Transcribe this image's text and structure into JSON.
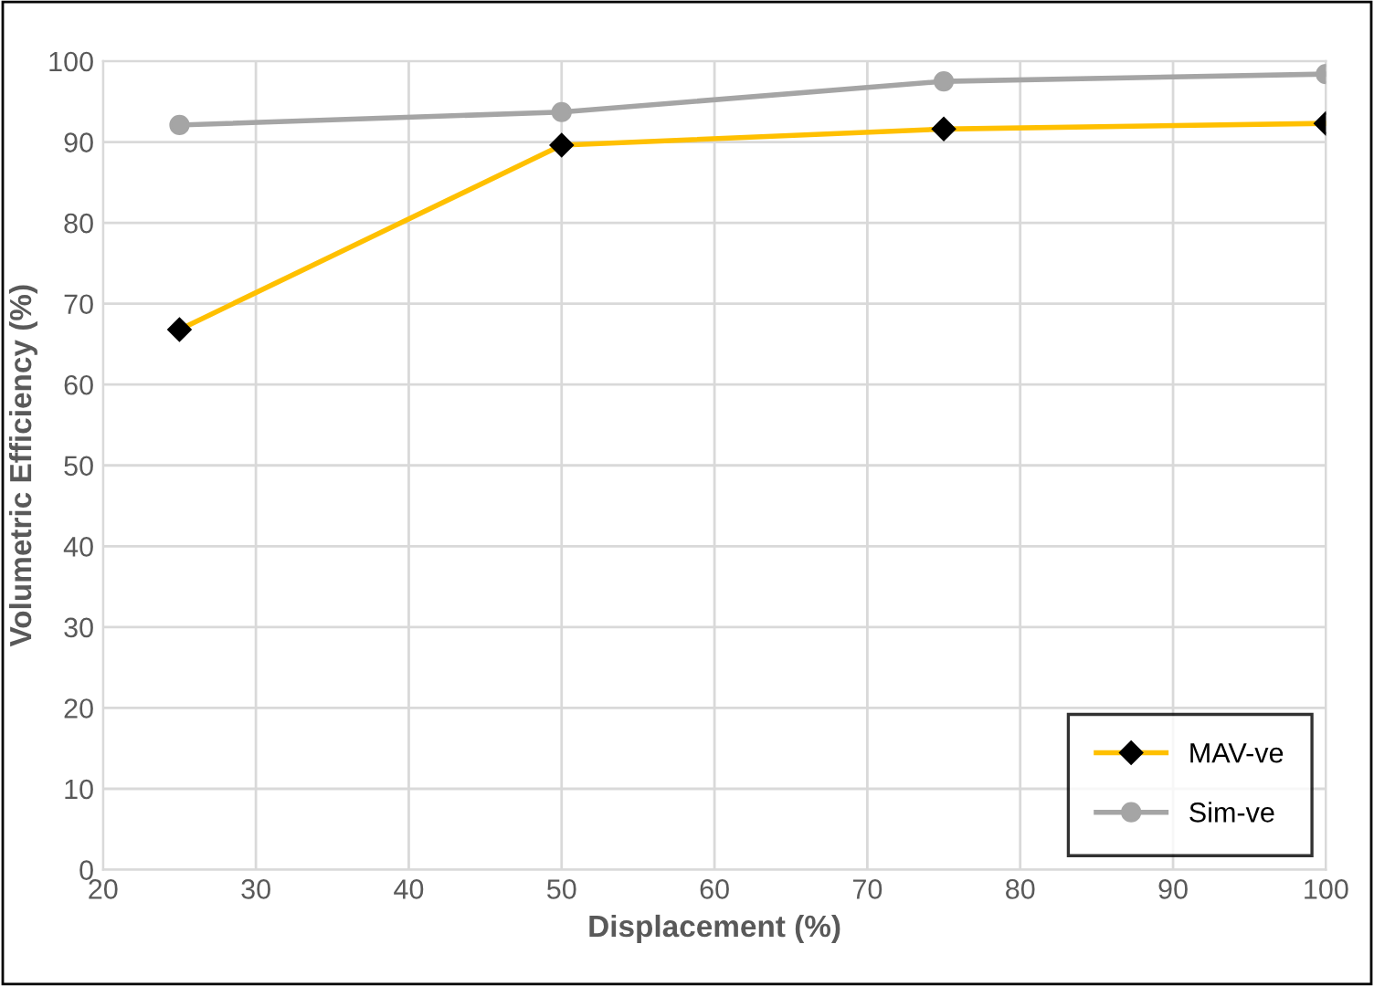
{
  "chart_data": {
    "type": "line",
    "xlabel": "Displacement (%)",
    "ylabel": "Volumetric Efficiency (%)",
    "x": [
      25,
      50,
      75,
      100
    ],
    "series": [
      {
        "name": "MAV-ve",
        "color": "#ffc000",
        "values": [
          66.8,
          89.6,
          91.6,
          92.3
        ],
        "marker": "diamond"
      },
      {
        "name": "Sim-ve",
        "color": "#a5a5a5",
        "values": [
          92.1,
          93.7,
          97.5,
          98.4
        ],
        "marker": "circle"
      }
    ],
    "xlim": [
      20,
      100
    ],
    "xticks": [
      20,
      30,
      40,
      50,
      60,
      70,
      80,
      90,
      100
    ],
    "ylim": [
      0,
      100
    ],
    "yticks": [
      0,
      10,
      20,
      30,
      40,
      50,
      60,
      70,
      80,
      90,
      100
    ],
    "grid": true,
    "legend": "bottom right",
    "line_style": "solid"
  }
}
